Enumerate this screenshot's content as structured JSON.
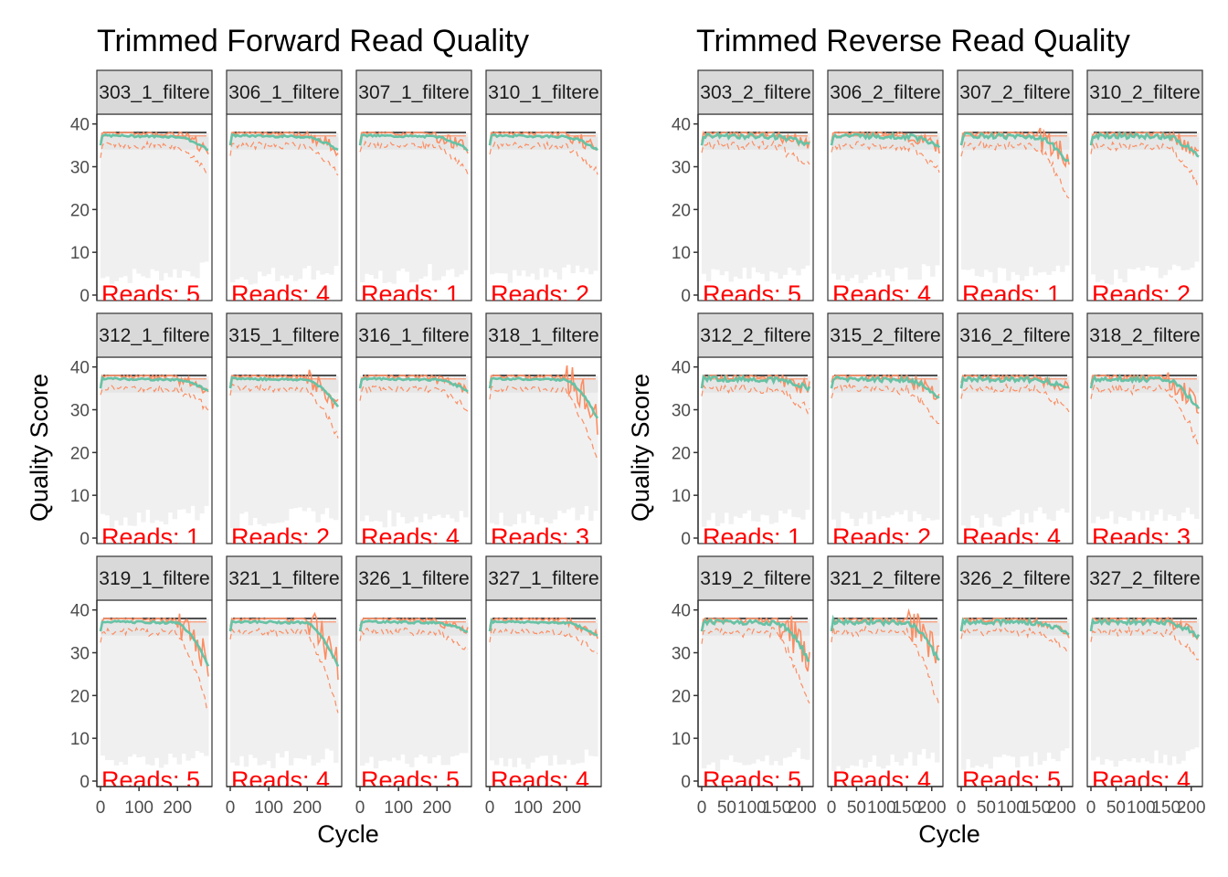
{
  "colors": {
    "mean": "#66C2A5",
    "median": "#FC8D62",
    "quartile": "#FC8D62",
    "reads_text": "#FF0000",
    "strip_bg": "#D9D9D9",
    "heat": "#F0F0F0"
  },
  "chart_data": [
    {
      "type": "line",
      "title": "Trimmed Forward Read Quality",
      "xlabel": "Cycle",
      "ylabel": "Quality Score",
      "xlim": [
        0,
        280
      ],
      "ylim": [
        0,
        41
      ],
      "x_ticks": [
        "0",
        "100",
        "200"
      ],
      "x_tick_values": [
        0,
        100,
        200
      ],
      "y_ticks": [
        "0",
        "10",
        "20",
        "30",
        "40"
      ],
      "y_tick_values": [
        0,
        10,
        20,
        30,
        40
      ],
      "grid": false,
      "panels": [
        {
          "label": "303_1_filtere",
          "reads": "Reads:  5",
          "end_mean": 34,
          "drop": 3
        },
        {
          "label": "306_1_filtere",
          "reads": "Reads:  4",
          "end_mean": 34,
          "drop": 3
        },
        {
          "label": "307_1_filtere",
          "reads": "Reads:  1",
          "end_mean": 34,
          "drop": 3
        },
        {
          "label": "310_1_filtere",
          "reads": "Reads:  2",
          "end_mean": 34,
          "drop": 3
        },
        {
          "label": "312_1_filtere",
          "reads": "Reads:  1",
          "end_mean": 34.5,
          "drop": 2
        },
        {
          "label": "315_1_filtere",
          "reads": "Reads:  2",
          "end_mean": 31,
          "drop": 5
        },
        {
          "label": "316_1_filtere",
          "reads": "Reads:  4",
          "end_mean": 34.5,
          "drop": 2
        },
        {
          "label": "318_1_filtere",
          "reads": "Reads:  3",
          "end_mean": 28,
          "drop": 8
        },
        {
          "label": "319_1_filtere",
          "reads": "Reads:  5",
          "end_mean": 27,
          "drop": 8
        },
        {
          "label": "321_1_filtere",
          "reads": "Reads:  4",
          "end_mean": 27,
          "drop": 8
        },
        {
          "label": "326_1_filtere",
          "reads": "Reads:  5",
          "end_mean": 35,
          "drop": 2
        },
        {
          "label": "327_1_filtere",
          "reads": "Reads:  4",
          "end_mean": 34,
          "drop": 2
        }
      ]
    },
    {
      "type": "line",
      "title": "Trimmed Reverse Read Quality",
      "xlabel": "Cycle",
      "ylabel": "Quality Score",
      "xlim": [
        0,
        215
      ],
      "ylim": [
        0,
        41
      ],
      "x_ticks": [
        "0",
        "50",
        "100",
        "150",
        "200"
      ],
      "x_tick_values": [
        0,
        50,
        100,
        150,
        200
      ],
      "y_ticks": [
        "0",
        "10",
        "20",
        "30",
        "40"
      ],
      "y_tick_values": [
        0,
        10,
        20,
        30,
        40
      ],
      "grid": false,
      "panels": [
        {
          "label": "303_2_filtere",
          "reads": "Reads:  5",
          "end_mean": 35,
          "drop": 3
        },
        {
          "label": "306_2_filtere",
          "reads": "Reads:  4",
          "end_mean": 35,
          "drop": 3
        },
        {
          "label": "307_2_filtere",
          "reads": "Reads:  1",
          "end_mean": 31,
          "drop": 6
        },
        {
          "label": "310_2_filtere",
          "reads": "Reads:  2",
          "end_mean": 32.5,
          "drop": 4
        },
        {
          "label": "312_2_filtere",
          "reads": "Reads:  1",
          "end_mean": 35,
          "drop": 3
        },
        {
          "label": "315_2_filtere",
          "reads": "Reads:  2",
          "end_mean": 33,
          "drop": 4
        },
        {
          "label": "316_2_filtere",
          "reads": "Reads:  4",
          "end_mean": 35,
          "drop": 3
        },
        {
          "label": "318_2_filtere",
          "reads": "Reads:  3",
          "end_mean": 30,
          "drop": 6
        },
        {
          "label": "319_2_filtere",
          "reads": "Reads:  5",
          "end_mean": 28,
          "drop": 8
        },
        {
          "label": "321_2_filtere",
          "reads": "Reads:  4",
          "end_mean": 28,
          "drop": 8
        },
        {
          "label": "326_2_filtere",
          "reads": "Reads:  5",
          "end_mean": 34.5,
          "drop": 2
        },
        {
          "label": "327_2_filtere",
          "reads": "Reads:  4",
          "end_mean": 34,
          "drop": 3
        }
      ]
    }
  ]
}
